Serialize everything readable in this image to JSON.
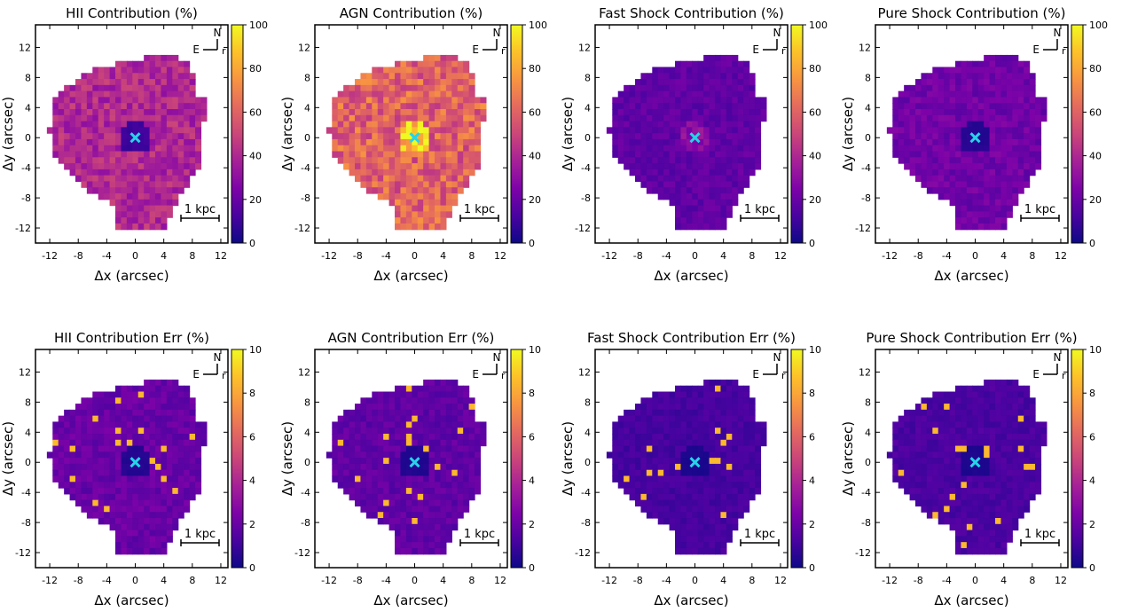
{
  "figure": {
    "row_top_titles": [
      "HII Contribution (%)",
      "AGN Contribution (%)",
      "Fast Shock Contribution (%)",
      "Pure Shock Contribution (%)"
    ],
    "row_bottom_titles": [
      "HII Contribution Err (%)",
      "AGN Contribution Err (%)",
      "Fast Shock Contribution Err (%)",
      "Pure Shock Contribution Err (%)"
    ]
  },
  "colors": {
    "colormap": "plasma",
    "nucleus_marker": "#26d3e8",
    "compass_e_arrow": "#000000",
    "compass_r_label": "#a020a0"
  },
  "chart_data": [
    {
      "type": "heatmap",
      "title": "HII Contribution (%)",
      "xlabel": "Δx (arcsec)",
      "ylabel": "Δy (arcsec)",
      "xlim": [
        -14,
        13
      ],
      "ylim": [
        -14,
        15
      ],
      "xticks": [
        "-12",
        "-8",
        "-4",
        "0",
        "4",
        "8",
        "12"
      ],
      "yticks": [
        "12",
        "8",
        "4",
        "0",
        "-4",
        "-8",
        "-12"
      ],
      "colorbar": {
        "range": [
          0,
          100
        ],
        "ticks": [
          "0",
          "20",
          "40",
          "60",
          "80",
          "100"
        ]
      },
      "compass": {
        "n": "N",
        "e": "E",
        "r": "r"
      },
      "scalebar_label": "1 kpc",
      "nucleus": [
        0,
        0
      ],
      "typical_value": 40
    },
    {
      "type": "heatmap",
      "title": "AGN Contribution (%)",
      "xlabel": "Δx (arcsec)",
      "ylabel": "Δy (arcsec)",
      "xlim": [
        -14,
        13
      ],
      "ylim": [
        -14,
        15
      ],
      "xticks": [
        "-12",
        "-8",
        "-4",
        "0",
        "4",
        "8",
        "12"
      ],
      "yticks": [
        "12",
        "8",
        "4",
        "0",
        "-4",
        "-8",
        "-12"
      ],
      "colorbar": {
        "range": [
          0,
          100
        ],
        "ticks": [
          "0",
          "20",
          "40",
          "60",
          "80",
          "100"
        ]
      },
      "compass": {
        "n": "N",
        "e": "E",
        "r": "r"
      },
      "scalebar_label": "1 kpc",
      "nucleus": [
        0,
        0
      ],
      "typical_value": 60
    },
    {
      "type": "heatmap",
      "title": "Fast Shock Contribution (%)",
      "xlabel": "Δx (arcsec)",
      "ylabel": "Δy (arcsec)",
      "xlim": [
        -14,
        13
      ],
      "ylim": [
        -14,
        15
      ],
      "xticks": [
        "-12",
        "-8",
        "-4",
        "0",
        "4",
        "8",
        "12"
      ],
      "yticks": [
        "12",
        "8",
        "4",
        "0",
        "-4",
        "-8",
        "-12"
      ],
      "colorbar": {
        "range": [
          0,
          100
        ],
        "ticks": [
          "0",
          "20",
          "40",
          "60",
          "80",
          "100"
        ]
      },
      "compass": {
        "n": "N",
        "e": "E",
        "r": "r"
      },
      "scalebar_label": "1 kpc",
      "nucleus": [
        0,
        0
      ],
      "typical_value": 18
    },
    {
      "type": "heatmap",
      "title": "Pure Shock Contribution (%)",
      "xlabel": "Δx (arcsec)",
      "ylabel": "Δy (arcsec)",
      "xlim": [
        -14,
        13
      ],
      "ylim": [
        -14,
        15
      ],
      "xticks": [
        "-12",
        "-8",
        "-4",
        "0",
        "4",
        "8",
        "12"
      ],
      "yticks": [
        "12",
        "8",
        "4",
        "0",
        "-4",
        "-8",
        "-12"
      ],
      "colorbar": {
        "range": [
          0,
          100
        ],
        "ticks": [
          "0",
          "20",
          "40",
          "60",
          "80",
          "100"
        ]
      },
      "compass": {
        "n": "N",
        "e": "E",
        "r": "r"
      },
      "scalebar_label": "1 kpc",
      "nucleus": [
        0,
        0
      ],
      "typical_value": 22
    },
    {
      "type": "heatmap",
      "title": "HII Contribution Err (%)",
      "xlabel": "Δx (arcsec)",
      "ylabel": "Δy (arcsec)",
      "xlim": [
        -14,
        13
      ],
      "ylim": [
        -14,
        15
      ],
      "xticks": [
        "-12",
        "-8",
        "-4",
        "0",
        "4",
        "8",
        "12"
      ],
      "yticks": [
        "12",
        "8",
        "4",
        "0",
        "-4",
        "-8",
        "-12"
      ],
      "colorbar": {
        "range": [
          0,
          10
        ],
        "ticks": [
          "0",
          "2",
          "4",
          "6",
          "8",
          "10"
        ]
      },
      "compass": {
        "n": "N",
        "e": "E",
        "r": "r"
      },
      "scalebar_label": "1 kpc",
      "nucleus": [
        0,
        0
      ],
      "typical_value": 2
    },
    {
      "type": "heatmap",
      "title": "AGN Contribution Err (%)",
      "xlabel": "Δx (arcsec)",
      "ylabel": "Δy (arcsec)",
      "xlim": [
        -14,
        13
      ],
      "ylim": [
        -14,
        15
      ],
      "xticks": [
        "-12",
        "-8",
        "-4",
        "0",
        "4",
        "8",
        "12"
      ],
      "yticks": [
        "12",
        "8",
        "4",
        "0",
        "-4",
        "-8",
        "-12"
      ],
      "colorbar": {
        "range": [
          0,
          10
        ],
        "ticks": [
          "0",
          "2",
          "4",
          "6",
          "8",
          "10"
        ]
      },
      "compass": {
        "n": "N",
        "e": "E",
        "r": "r"
      },
      "scalebar_label": "1 kpc",
      "nucleus": [
        0,
        0
      ],
      "typical_value": 1.8
    },
    {
      "type": "heatmap",
      "title": "Fast Shock Contribution Err (%)",
      "xlabel": "Δx (arcsec)",
      "ylabel": "Δy (arcsec)",
      "xlim": [
        -14,
        13
      ],
      "ylim": [
        -14,
        15
      ],
      "xticks": [
        "-12",
        "-8",
        "-4",
        "0",
        "4",
        "8",
        "12"
      ],
      "yticks": [
        "12",
        "8",
        "4",
        "0",
        "-4",
        "-8",
        "-12"
      ],
      "colorbar": {
        "range": [
          0,
          10
        ],
        "ticks": [
          "0",
          "2",
          "4",
          "6",
          "8",
          "10"
        ]
      },
      "compass": {
        "n": "N",
        "e": "E",
        "r": "r"
      },
      "scalebar_label": "1 kpc",
      "nucleus": [
        0,
        0
      ],
      "typical_value": 1.2
    },
    {
      "type": "heatmap",
      "title": "Pure Shock Contribution Err (%)",
      "xlabel": "Δx (arcsec)",
      "ylabel": "Δy (arcsec)",
      "xlim": [
        -14,
        13
      ],
      "ylim": [
        -14,
        15
      ],
      "xticks": [
        "-12",
        "-8",
        "-4",
        "0",
        "4",
        "8",
        "12"
      ],
      "yticks": [
        "12",
        "8",
        "4",
        "0",
        "-4",
        "-8",
        "-12"
      ],
      "colorbar": {
        "range": [
          0,
          10
        ],
        "ticks": [
          "0",
          "2",
          "4",
          "6",
          "8",
          "10"
        ]
      },
      "compass": {
        "n": "N",
        "e": "E",
        "r": "r"
      },
      "scalebar_label": "1 kpc",
      "nucleus": [
        0,
        0
      ],
      "typical_value": 1.3
    }
  ]
}
